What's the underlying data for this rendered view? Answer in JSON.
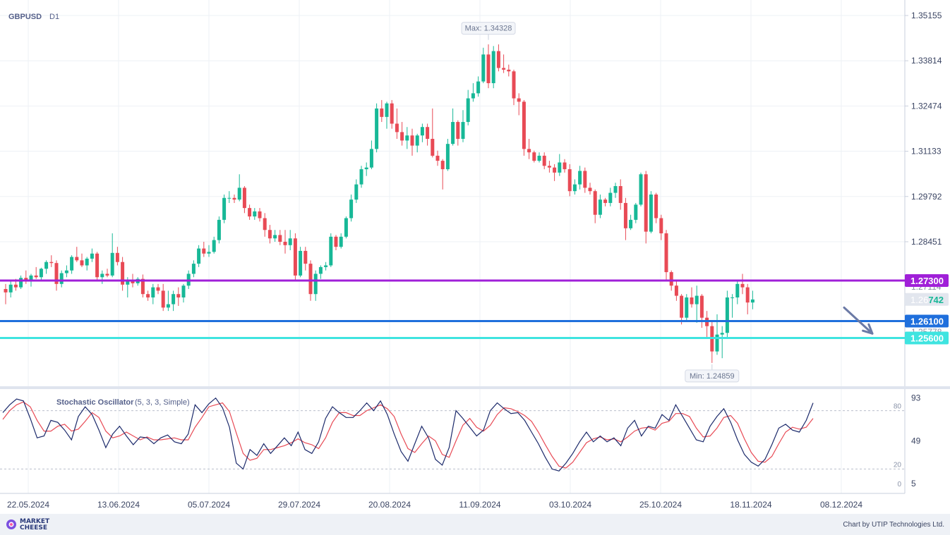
{
  "symbol": "GBPUSD",
  "timeframe": "D1",
  "price_labels": {
    "current_prefix": "1.26",
    "current_suffix": "742",
    "faint_upper": "1.27114",
    "faint_lower": "1.25778"
  },
  "max_label": "Max: 1.34328",
  "min_label": "Min: 1.24859",
  "oscillator": {
    "name": "Stochastic Oscillator",
    "params": "(5, 3, 3, Simple)",
    "levels": [
      "80",
      "20",
      "0"
    ],
    "axis_ticks": [
      "93",
      "49",
      "5"
    ]
  },
  "footer": {
    "brand": "MARKET\nCHEESE",
    "credit": "Chart by UTIP Technologies Ltd."
  },
  "colors": {
    "bull": "#17b897",
    "bear": "#e84a55",
    "level_purple": "#a020d8",
    "level_blue": "#1f6fdc",
    "level_cyan": "#3fe4e0",
    "k_line": "#1c2a6b",
    "d_line": "#e84a55"
  },
  "chart_data": {
    "type": "candlestick",
    "price_axis_ticks": [
      1.35155,
      1.33814,
      1.32474,
      1.31133,
      1.29792,
      1.28451
    ],
    "y_range": [
      1.2425,
      1.3515
    ],
    "date_ticks": [
      "22.05.2024",
      "13.06.2024",
      "05.07.2024",
      "29.07.2024",
      "20.08.2024",
      "11.09.2024",
      "03.10.2024",
      "25.10.2024",
      "18.11.2024",
      "08.12.2024"
    ],
    "horizontal_levels": [
      {
        "price": 1.273,
        "label": "1.27300",
        "color": "#a020d8"
      },
      {
        "price": 1.261,
        "label": "1.26100",
        "color": "#1f6fdc"
      },
      {
        "price": 1.256,
        "label": "1.25600",
        "color": "#3fe4e0"
      }
    ],
    "current_price": 1.26742,
    "max": 1.34328,
    "min": 1.24859,
    "forecast_arrow": {
      "from_bar": 165,
      "to_bar": 170,
      "from_price": 1.265,
      "to_price": 1.2573
    },
    "candles": [
      [
        1.2705,
        1.272,
        1.266,
        1.2695
      ],
      [
        1.2695,
        1.273,
        1.268,
        1.2718
      ],
      [
        1.2718,
        1.2735,
        1.27,
        1.271
      ],
      [
        1.271,
        1.2745,
        1.2705,
        1.2738
      ],
      [
        1.2738,
        1.276,
        1.272,
        1.2728
      ],
      [
        1.2728,
        1.275,
        1.2712,
        1.2745
      ],
      [
        1.2745,
        1.277,
        1.2735,
        1.274
      ],
      [
        1.274,
        1.2768,
        1.273,
        1.2765
      ],
      [
        1.2765,
        1.279,
        1.275,
        1.2785
      ],
      [
        1.2785,
        1.2805,
        1.277,
        1.2782
      ],
      [
        1.2782,
        1.279,
        1.27,
        1.272
      ],
      [
        1.272,
        1.276,
        1.271,
        1.2752
      ],
      [
        1.2752,
        1.2775,
        1.274,
        1.276
      ],
      [
        1.276,
        1.2805,
        1.275,
        1.28
      ],
      [
        1.28,
        1.283,
        1.2785,
        1.279
      ],
      [
        1.279,
        1.281,
        1.277,
        1.2775
      ],
      [
        1.2775,
        1.28,
        1.276,
        1.2795
      ],
      [
        1.2795,
        1.2825,
        1.2785,
        1.281
      ],
      [
        1.281,
        1.2815,
        1.273,
        1.274
      ],
      [
        1.274,
        1.276,
        1.272,
        1.275
      ],
      [
        1.275,
        1.2765,
        1.274,
        1.2745
      ],
      [
        1.2745,
        1.287,
        1.274,
        1.2812
      ],
      [
        1.2812,
        1.283,
        1.2775,
        1.2785
      ],
      [
        1.2785,
        1.28,
        1.27,
        1.2718
      ],
      [
        1.2718,
        1.274,
        1.268,
        1.2728
      ],
      [
        1.2728,
        1.275,
        1.271,
        1.2722
      ],
      [
        1.2722,
        1.274,
        1.2715,
        1.2735
      ],
      [
        1.2735,
        1.2748,
        1.268,
        1.269
      ],
      [
        1.269,
        1.27,
        1.267,
        1.268
      ],
      [
        1.268,
        1.272,
        1.266,
        1.271
      ],
      [
        1.271,
        1.272,
        1.269,
        1.27
      ],
      [
        1.27,
        1.272,
        1.264,
        1.265
      ],
      [
        1.265,
        1.27,
        1.264,
        1.266
      ],
      [
        1.266,
        1.27,
        1.264,
        1.269
      ],
      [
        1.269,
        1.271,
        1.2655,
        1.268
      ],
      [
        1.268,
        1.272,
        1.2665,
        1.2715
      ],
      [
        1.2715,
        1.276,
        1.2705,
        1.275
      ],
      [
        1.275,
        1.279,
        1.274,
        1.278
      ],
      [
        1.278,
        1.2835,
        1.277,
        1.2825
      ],
      [
        1.2825,
        1.2845,
        1.28,
        1.281
      ],
      [
        1.281,
        1.2835,
        1.28,
        1.2815
      ],
      [
        1.2815,
        1.286,
        1.281,
        1.285
      ],
      [
        1.285,
        1.292,
        1.284,
        1.291
      ],
      [
        1.291,
        1.2985,
        1.29,
        1.2975
      ],
      [
        1.2975,
        1.2995,
        1.296,
        1.2975
      ],
      [
        1.2975,
        1.2985,
        1.296,
        1.297
      ],
      [
        1.297,
        1.3045,
        1.2965,
        1.3005
      ],
      [
        1.3005,
        1.301,
        1.293,
        1.2945
      ],
      [
        1.2945,
        1.2955,
        1.291,
        1.292
      ],
      [
        1.292,
        1.2945,
        1.291,
        1.2935
      ],
      [
        1.2935,
        1.2945,
        1.2905,
        1.2915
      ],
      [
        1.2915,
        1.293,
        1.286,
        1.288
      ],
      [
        1.288,
        1.2895,
        1.284,
        1.2855
      ],
      [
        1.2855,
        1.288,
        1.2845,
        1.2865
      ],
      [
        1.2865,
        1.288,
        1.2835,
        1.2845
      ],
      [
        1.2845,
        1.288,
        1.281,
        1.2835
      ],
      [
        1.2835,
        1.288,
        1.282,
        1.2855
      ],
      [
        1.2855,
        1.287,
        1.273,
        1.2745
      ],
      [
        1.2745,
        1.283,
        1.274,
        1.2818
      ],
      [
        1.2818,
        1.283,
        1.276,
        1.278
      ],
      [
        1.278,
        1.279,
        1.267,
        1.269
      ],
      [
        1.269,
        1.276,
        1.267,
        1.275
      ],
      [
        1.275,
        1.2775,
        1.2735,
        1.277
      ],
      [
        1.277,
        1.2785,
        1.276,
        1.2775
      ],
      [
        1.2775,
        1.287,
        1.277,
        1.286
      ],
      [
        1.286,
        1.2865,
        1.282,
        1.283
      ],
      [
        1.283,
        1.287,
        1.2825,
        1.286
      ],
      [
        1.286,
        1.292,
        1.2855,
        1.2915
      ],
      [
        1.2915,
        1.2985,
        1.2905,
        1.297
      ],
      [
        1.297,
        1.303,
        1.296,
        1.3015
      ],
      [
        1.3015,
        1.307,
        1.3005,
        1.306
      ],
      [
        1.306,
        1.308,
        1.304,
        1.3065
      ],
      [
        1.3065,
        1.3145,
        1.306,
        1.312
      ],
      [
        1.312,
        1.3255,
        1.311,
        1.324
      ],
      [
        1.324,
        1.3265,
        1.32,
        1.3215
      ],
      [
        1.3215,
        1.326,
        1.318,
        1.3255
      ],
      [
        1.3255,
        1.3265,
        1.318,
        1.3195
      ],
      [
        1.3195,
        1.324,
        1.315,
        1.317
      ],
      [
        1.317,
        1.32,
        1.313,
        1.3145
      ],
      [
        1.3145,
        1.3185,
        1.312,
        1.316
      ],
      [
        1.316,
        1.318,
        1.31,
        1.313
      ],
      [
        1.313,
        1.3165,
        1.311,
        1.316
      ],
      [
        1.316,
        1.3195,
        1.314,
        1.3185
      ],
      [
        1.3185,
        1.3195,
        1.313,
        1.315
      ],
      [
        1.315,
        1.324,
        1.3095,
        1.31
      ],
      [
        1.31,
        1.3115,
        1.307,
        1.3085
      ],
      [
        1.3085,
        1.309,
        1.3,
        1.306
      ],
      [
        1.306,
        1.315,
        1.3055,
        1.3135
      ],
      [
        1.3135,
        1.324,
        1.313,
        1.32
      ],
      [
        1.32,
        1.3205,
        1.313,
        1.315
      ],
      [
        1.315,
        1.3235,
        1.314,
        1.32
      ],
      [
        1.32,
        1.3295,
        1.319,
        1.327
      ],
      [
        1.327,
        1.3315,
        1.326,
        1.3285
      ],
      [
        1.3285,
        1.3335,
        1.3275,
        1.332
      ],
      [
        1.332,
        1.342,
        1.3315,
        1.34
      ],
      [
        1.34,
        1.343,
        1.33,
        1.3315
      ],
      [
        1.3315,
        1.3425,
        1.33,
        1.341
      ],
      [
        1.341,
        1.343,
        1.335,
        1.336
      ],
      [
        1.336,
        1.34,
        1.3345,
        1.3355
      ],
      [
        1.3355,
        1.337,
        1.3335,
        1.335
      ],
      [
        1.335,
        1.3355,
        1.325,
        1.327
      ],
      [
        1.327,
        1.3285,
        1.322,
        1.326
      ],
      [
        1.326,
        1.3265,
        1.31,
        1.312
      ],
      [
        1.312,
        1.315,
        1.309,
        1.311
      ],
      [
        1.311,
        1.3115,
        1.308,
        1.3085
      ],
      [
        1.3085,
        1.311,
        1.308,
        1.31
      ],
      [
        1.31,
        1.311,
        1.306,
        1.307
      ],
      [
        1.307,
        1.3085,
        1.305,
        1.3065
      ],
      [
        1.3065,
        1.3075,
        1.3025,
        1.305
      ],
      [
        1.305,
        1.3105,
        1.304,
        1.308
      ],
      [
        1.308,
        1.309,
        1.305,
        1.306
      ],
      [
        1.306,
        1.3075,
        1.298,
        1.2995
      ],
      [
        1.2995,
        1.303,
        1.2985,
        1.3015
      ],
      [
        1.3015,
        1.307,
        1.3,
        1.3055
      ],
      [
        1.3055,
        1.3065,
        1.299,
        1.3005
      ],
      [
        1.3005,
        1.302,
        1.2985,
        1.2995
      ],
      [
        1.2995,
        1.3,
        1.29,
        1.2925
      ],
      [
        1.2925,
        1.2985,
        1.2915,
        1.297
      ],
      [
        1.297,
        1.2975,
        1.295,
        1.296
      ],
      [
        1.296,
        1.3005,
        1.295,
        1.299
      ],
      [
        1.299,
        1.302,
        1.2975,
        1.301
      ],
      [
        1.301,
        1.303,
        1.294,
        1.296
      ],
      [
        1.296,
        1.2975,
        1.285,
        1.2885
      ],
      [
        1.2885,
        1.2925,
        1.288,
        1.291
      ],
      [
        1.291,
        1.296,
        1.29,
        1.2955
      ],
      [
        1.2955,
        1.305,
        1.295,
        1.3045
      ],
      [
        1.3045,
        1.3055,
        1.284,
        1.2875
      ],
      [
        1.2875,
        1.2995,
        1.287,
        1.2985
      ],
      [
        1.2985,
        1.299,
        1.29,
        1.2915
      ],
      [
        1.2915,
        1.2925,
        1.285,
        1.287
      ],
      [
        1.287,
        1.288,
        1.273,
        1.2755
      ],
      [
        1.2755,
        1.276,
        1.27,
        1.2715
      ],
      [
        1.2715,
        1.273,
        1.267,
        1.2685
      ],
      [
        1.2685,
        1.269,
        1.26,
        1.262
      ],
      [
        1.262,
        1.269,
        1.261,
        1.268
      ],
      [
        1.268,
        1.271,
        1.265,
        1.266
      ],
      [
        1.266,
        1.2715,
        1.2605,
        1.2685
      ],
      [
        1.2685,
        1.269,
        1.259,
        1.262
      ],
      [
        1.262,
        1.264,
        1.256,
        1.2595
      ],
      [
        1.2595,
        1.261,
        1.2486,
        1.252
      ],
      [
        1.252,
        1.263,
        1.251,
        1.257
      ],
      [
        1.257,
        1.2595,
        1.25,
        1.2575
      ],
      [
        1.2575,
        1.27,
        1.256,
        1.268
      ],
      [
        1.268,
        1.269,
        1.262,
        1.268
      ],
      [
        1.268,
        1.273,
        1.266,
        1.272
      ],
      [
        1.272,
        1.275,
        1.269,
        1.271
      ],
      [
        1.271,
        1.272,
        1.263,
        1.2665
      ],
      [
        1.2665,
        1.27,
        1.2645,
        1.2674
      ]
    ],
    "stochastic": {
      "k": [
        78,
        86,
        92,
        90,
        72,
        52,
        54,
        70,
        68,
        60,
        50,
        74,
        84,
        76,
        60,
        42,
        56,
        64,
        54,
        45,
        53,
        52,
        46,
        52,
        55,
        48,
        46,
        56,
        86,
        78,
        87,
        93,
        83,
        63,
        26,
        20,
        40,
        34,
        46,
        36,
        44,
        52,
        44,
        58,
        40,
        36,
        48,
        72,
        84,
        78,
        73,
        73,
        80,
        88,
        80,
        90,
        76,
        56,
        38,
        28,
        46,
        64,
        52,
        30,
        24,
        42,
        80,
        72,
        63,
        54,
        60,
        80,
        88,
        82,
        77,
        78,
        70,
        58,
        46,
        32,
        20,
        18,
        26,
        36,
        48,
        58,
        48,
        54,
        48,
        52,
        44,
        62,
        70,
        54,
        64,
        62,
        76,
        70,
        86,
        74,
        62,
        50,
        48,
        64,
        74,
        82,
        68,
        50,
        35,
        27,
        23,
        30,
        45,
        62,
        66,
        60,
        58,
        70,
        88
      ],
      "d": [
        71,
        80,
        86,
        89,
        84,
        70,
        59,
        59,
        64,
        66,
        59,
        61,
        69,
        78,
        73,
        59,
        52,
        54,
        58,
        54,
        50,
        53,
        50,
        50,
        51,
        52,
        50,
        50,
        63,
        73,
        84,
        86,
        88,
        79,
        57,
        36,
        29,
        31,
        40,
        40,
        42,
        44,
        47,
        51,
        47,
        45,
        41,
        52,
        68,
        78,
        78,
        75,
        75,
        80,
        83,
        86,
        82,
        74,
        56,
        41,
        37,
        46,
        54,
        49,
        35,
        32,
        49,
        65,
        72,
        63,
        59,
        65,
        76,
        83,
        82,
        79,
        75,
        69,
        58,
        45,
        33,
        23,
        21,
        27,
        37,
        47,
        51,
        53,
        50,
        51,
        48,
        53,
        59,
        62,
        63,
        60,
        67,
        69,
        77,
        77,
        74,
        62,
        53,
        54,
        62,
        73,
        75,
        67,
        51,
        37,
        28,
        27,
        33,
        46,
        58,
        63,
        61,
        63,
        72
      ]
    }
  }
}
